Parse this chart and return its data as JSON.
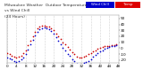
{
  "title": "Milwaukee Weather  Outdoor Temp",
  "bg_color": "#ffffff",
  "grid_color": "#aaaaaa",
  "temp_color": "#cc0000",
  "windchill_color": "#0000cc",
  "legend_temp_color": "#dd0000",
  "legend_wc_color": "#0000cc",
  "legend_temp_label": "Temp",
  "legend_wc_label": "Wind Chill",
  "xlim": [
    0,
    48
  ],
  "ylim": [
    -25,
    55
  ],
  "ytick_vals": [
    -20,
    -10,
    0,
    10,
    20,
    30,
    40,
    50
  ],
  "marker_size": 1.5,
  "temp_x": [
    0,
    1,
    2,
    3,
    4,
    5,
    6,
    7,
    8,
    9,
    10,
    11,
    12,
    13,
    14,
    15,
    16,
    17,
    18,
    19,
    20,
    21,
    22,
    23,
    24,
    25,
    26,
    27,
    28,
    29,
    30,
    31,
    32,
    33,
    34,
    35,
    36,
    37,
    38,
    39,
    40,
    41,
    42,
    43,
    44,
    45,
    46,
    47
  ],
  "temp_y": [
    -8,
    -10,
    -12,
    -14,
    -15,
    -14,
    -12,
    -8,
    -3,
    5,
    12,
    20,
    28,
    33,
    36,
    38,
    38,
    37,
    36,
    34,
    30,
    25,
    20,
    15,
    10,
    6,
    2,
    -2,
    -6,
    -10,
    -14,
    -16,
    -15,
    -14,
    -12,
    -10,
    -8,
    -5,
    -3,
    -1,
    1,
    2,
    3,
    4,
    4,
    5,
    5,
    6
  ],
  "wc_x": [
    0,
    1,
    2,
    3,
    4,
    5,
    6,
    7,
    8,
    9,
    10,
    11,
    12,
    13,
    14,
    15,
    16,
    17,
    18,
    19,
    20,
    21,
    22,
    23,
    24,
    25,
    26,
    27,
    28,
    29,
    30,
    31,
    32,
    33,
    34,
    35,
    36,
    37,
    38,
    39,
    40,
    41,
    42,
    43,
    44,
    45,
    46,
    47
  ],
  "wc_y": [
    -15,
    -17,
    -19,
    -21,
    -23,
    -21,
    -19,
    -15,
    -9,
    -2,
    6,
    14,
    22,
    28,
    32,
    34,
    35,
    34,
    32,
    29,
    24,
    18,
    12,
    6,
    1,
    -4,
    -9,
    -13,
    -18,
    -22,
    -26,
    -28,
    -27,
    -25,
    -23,
    -21,
    -18,
    -14,
    -11,
    -8,
    -5,
    -3,
    -1,
    1,
    2,
    3,
    4,
    5
  ],
  "xtick_positions": [
    0,
    4,
    8,
    12,
    16,
    20,
    24,
    28,
    32,
    36,
    40,
    44,
    48
  ],
  "xtick_labels": [
    "0",
    "4",
    "8",
    "12",
    "16",
    "20",
    "24",
    "28",
    "32",
    "36",
    "40",
    "44",
    "48"
  ]
}
